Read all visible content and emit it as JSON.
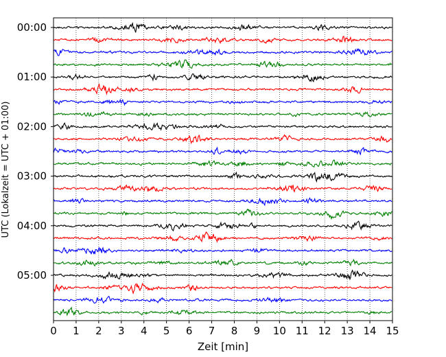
{
  "chart_data": {
    "type": "line",
    "xlabel": "Zeit  [min]",
    "ylabel": "UTC (Lokalzeit = UTC + 01:00)",
    "xlim": [
      0,
      15
    ],
    "x_ticks": [
      0,
      1,
      2,
      3,
      4,
      5,
      6,
      7,
      8,
      9,
      10,
      11,
      12,
      13,
      14,
      15
    ],
    "y_tick_labels": [
      "00:00",
      "01:00",
      "02:00",
      "03:00",
      "04:00",
      "05:00"
    ],
    "trace_count": 24,
    "trace_interval_min": 15,
    "trace_color_cycle": [
      "#000000",
      "#ff0000",
      "#0000ff",
      "#008000"
    ],
    "grid": "vertical dotted at each minute",
    "seismogram_traces": [
      {
        "start": "00:00",
        "color": "#000000"
      },
      {
        "start": "00:15",
        "color": "#ff0000"
      },
      {
        "start": "00:30",
        "color": "#0000ff"
      },
      {
        "start": "00:45",
        "color": "#008000"
      },
      {
        "start": "01:00",
        "color": "#000000"
      },
      {
        "start": "01:15",
        "color": "#ff0000"
      },
      {
        "start": "01:30",
        "color": "#0000ff"
      },
      {
        "start": "01:45",
        "color": "#008000"
      },
      {
        "start": "02:00",
        "color": "#000000"
      },
      {
        "start": "02:15",
        "color": "#ff0000"
      },
      {
        "start": "02:30",
        "color": "#0000ff"
      },
      {
        "start": "02:45",
        "color": "#008000"
      },
      {
        "start": "03:00",
        "color": "#000000"
      },
      {
        "start": "03:15",
        "color": "#ff0000"
      },
      {
        "start": "03:30",
        "color": "#0000ff"
      },
      {
        "start": "03:45",
        "color": "#008000"
      },
      {
        "start": "04:00",
        "color": "#000000"
      },
      {
        "start": "04:15",
        "color": "#ff0000"
      },
      {
        "start": "04:30",
        "color": "#0000ff"
      },
      {
        "start": "04:45",
        "color": "#008000"
      },
      {
        "start": "05:00",
        "color": "#000000"
      },
      {
        "start": "05:15",
        "color": "#ff0000"
      },
      {
        "start": "05:30",
        "color": "#0000ff"
      },
      {
        "start": "05:45",
        "color": "#008000"
      }
    ]
  }
}
